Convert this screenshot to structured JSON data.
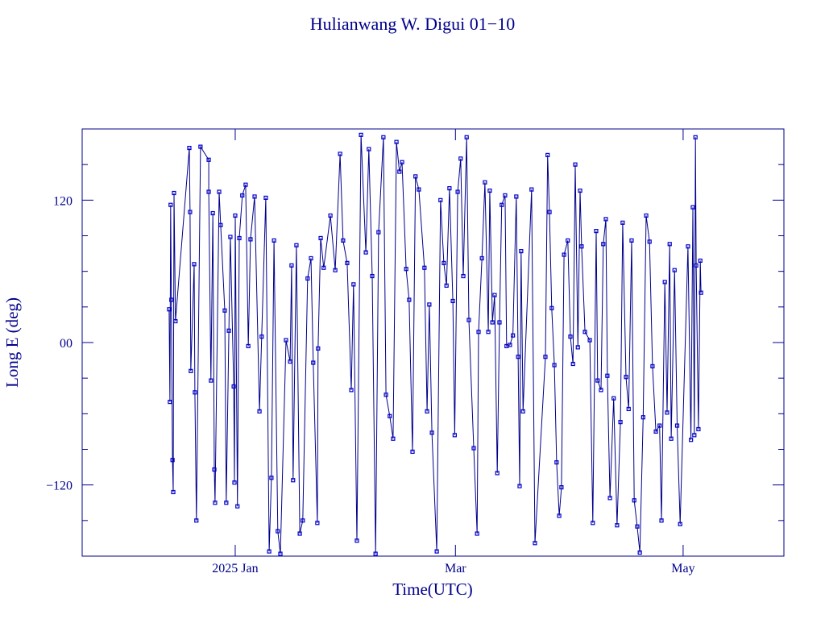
{
  "chart_data": {
    "type": "line",
    "title": "Hulianwang W. Digui 01−10",
    "x_label": "Time(UTC)",
    "y_label": "Long E (deg)",
    "xlim": [
      -41,
      147
    ],
    "ylim": [
      -180,
      180
    ],
    "xticks": [
      {
        "value": 0,
        "label": "2025 Jan"
      },
      {
        "value": 59,
        "label": "Mar"
      },
      {
        "value": 120,
        "label": "May"
      }
    ],
    "yticks": [
      {
        "value": -120,
        "label": "−120"
      },
      {
        "value": 0,
        "label": "00"
      },
      120
    ],
    "yminorticks": [
      -150,
      -90,
      -60,
      -30,
      30,
      60,
      90,
      150
    ],
    "series": [
      {
        "color": "#0000cd",
        "x": [
          -17.7,
          -17.5,
          -17.3,
          -17.1,
          -16.8,
          -16.6,
          -16.4,
          -16.0,
          -12.3,
          -12.1,
          -11.9,
          -11.0,
          -10.8,
          -10.4,
          -9.3,
          -7.1,
          -7.1,
          -6.5,
          -6.0,
          -5.6,
          -5.4,
          -4.3,
          -3.9,
          -2.8,
          -2.4,
          -1.7,
          -1.3,
          -0.4,
          -0.2,
          0,
          0.6,
          1.1,
          1.9,
          2.8,
          3.5,
          4.1,
          5.2,
          6.5,
          7.1,
          8.2,
          9.1,
          9.7,
          10.4,
          11.4,
          12.1,
          13.6,
          14.7,
          15.1,
          15.5,
          16.4,
          17.3,
          18.1,
          19.4,
          20.3,
          20.9,
          22.0,
          22.2,
          22.9,
          23.7,
          25.5,
          26.8,
          28.1,
          28.9,
          30.0,
          31.1,
          31.7,
          32.6,
          33.7,
          35.0,
          35.8,
          36.7,
          37.6,
          38.4,
          39.7,
          40.4,
          41.4,
          42.3,
          43.2,
          44.0,
          44.7,
          45.8,
          46.6,
          47.5,
          48.3,
          49.2,
          50.7,
          51.4,
          52.0,
          52.7,
          54.0,
          55.0,
          55.9,
          56.6,
          57.4,
          58.3,
          58.8,
          59.6,
          60.4,
          61.1,
          62.0,
          62.6,
          63.9,
          64.8,
          65.2,
          66.1,
          66.9,
          67.8,
          68.2,
          68.9,
          69.5,
          70.2,
          70.8,
          71.4,
          72.3,
          72.7,
          73.6,
          74.4,
          75.3,
          75.8,
          76.2,
          76.6,
          77.1,
          79.4,
          80.3,
          83.1,
          83.7,
          84.2,
          84.8,
          85.5,
          86.1,
          86.8,
          87.4,
          88.1,
          89.1,
          89.8,
          90.5,
          91.1,
          91.8,
          92.4,
          92.8,
          93.7,
          95.0,
          95.8,
          96.7,
          97.1,
          98.0,
          98.6,
          99.3,
          99.7,
          100.4,
          101.4,
          102.3,
          103.2,
          103.8,
          104.7,
          105.4,
          106.2,
          106.9,
          107.7,
          108.4,
          109.3,
          110.1,
          111.0,
          111.8,
          112.7,
          113.7,
          114.2,
          115.1,
          115.7,
          116.4,
          116.8,
          117.7,
          118.4,
          119.2,
          121.3,
          122.1,
          122.6,
          123.0,
          123.3,
          123.5,
          124.1,
          124.6,
          124.8
        ],
        "values": [
          28,
          -50,
          116,
          36,
          -99,
          -126,
          126,
          18,
          164,
          110,
          -24,
          66,
          -42,
          -150,
          165,
          154,
          127,
          -32,
          109,
          -107,
          -135,
          127,
          99,
          27,
          -135,
          10,
          89,
          -37,
          -118,
          107,
          -138,
          88,
          124,
          133,
          -3,
          87,
          123,
          -58,
          5,
          122,
          -176,
          -114,
          86,
          -159,
          -178,
          2,
          -16,
          65,
          -116,
          82,
          -161,
          -150,
          54,
          71,
          -17,
          -152,
          -5,
          88,
          63,
          107,
          61,
          159,
          86,
          67,
          -40,
          49,
          -167,
          175,
          76,
          163,
          56,
          -178,
          93,
          173,
          -44,
          -62,
          -81,
          169,
          144,
          152,
          62,
          36,
          -92,
          140,
          129,
          63,
          -58,
          32,
          -76,
          -176,
          120,
          67,
          48,
          130,
          35,
          -78,
          127,
          155,
          56,
          173,
          19,
          -89,
          -161,
          9,
          71,
          135,
          9,
          128,
          17,
          40,
          -110,
          17,
          116,
          124,
          -3,
          -2,
          6,
          123,
          -12,
          -121,
          77,
          -58,
          129,
          -169,
          -12,
          158,
          110,
          29,
          -19,
          -101,
          -146,
          -122,
          74,
          86,
          5,
          -18,
          150,
          -4,
          128,
          81,
          9,
          2,
          -152,
          94,
          -32,
          -40,
          83,
          104,
          -28,
          -131,
          -47,
          -154,
          -67,
          101,
          -29,
          -56,
          86,
          -133,
          -155,
          -177,
          -63,
          107,
          85,
          -20,
          -75,
          -70,
          -150,
          51,
          -59,
          83,
          -81,
          61,
          -70,
          -153,
          81,
          -82,
          114,
          -78,
          173,
          65,
          -73,
          69,
          42
        ]
      }
    ]
  }
}
